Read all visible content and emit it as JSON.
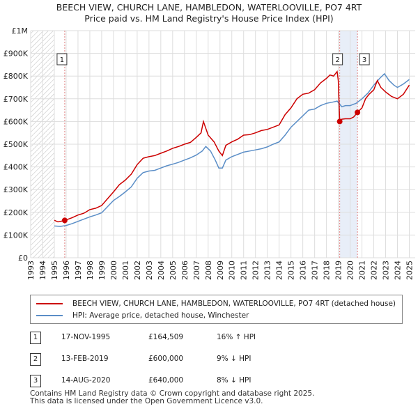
{
  "title_line1": "BEECH VIEW, CHURCH LANE, HAMBLEDON, WATERLOOVILLE, PO7 4RT",
  "title_line2": "Price paid vs. HM Land Registry's House Price Index (HPI)",
  "chart_data": {
    "type": "line",
    "title": "Price paid vs. HM Land Registry's House Price Index (HPI)",
    "xlabel": "",
    "ylabel": "",
    "xlim": [
      1993,
      2025.5
    ],
    "ylim": [
      0,
      1000000
    ],
    "y_ticks": [
      0,
      100000,
      200000,
      300000,
      400000,
      500000,
      600000,
      700000,
      800000,
      900000,
      1000000
    ],
    "y_tick_labels": [
      "£0",
      "£100K",
      "£200K",
      "£300K",
      "£400K",
      "£500K",
      "£600K",
      "£700K",
      "£800K",
      "£900K",
      "£1M"
    ],
    "x_tick_labels": [
      "1993",
      "1994",
      "1995",
      "1996",
      "1997",
      "1998",
      "1999",
      "2000",
      "2001",
      "2002",
      "2003",
      "2004",
      "2005",
      "2006",
      "2007",
      "2008",
      "2009",
      "2010",
      "2011",
      "2012",
      "2013",
      "2014",
      "2015",
      "2016",
      "2017",
      "2018",
      "2019",
      "2020",
      "2021",
      "2022",
      "2023",
      "2024",
      "2025"
    ],
    "grid": true,
    "hatched_region": [
      1993,
      1995.0
    ],
    "shaded_band": [
      2019.12,
      2020.62
    ],
    "series": [
      {
        "name": "BEECH VIEW, CHURCH LANE, HAMBLEDON, WATERLOOVILLE, PO7 4RT (detached house)",
        "color": "#cc0000",
        "x": [
          1995.0,
          1995.3,
          1995.6,
          1995.88,
          1996.5,
          1997.0,
          1997.5,
          1998.0,
          1998.5,
          1999.0,
          1999.5,
          2000.0,
          2000.5,
          2001.0,
          2001.5,
          2002.0,
          2002.5,
          2003.0,
          2003.5,
          2004.0,
          2004.5,
          2005.0,
          2005.5,
          2006.0,
          2006.5,
          2007.0,
          2007.4,
          2007.6,
          2008.0,
          2008.5,
          2008.9,
          2009.2,
          2009.5,
          2010.0,
          2010.5,
          2011.0,
          2011.5,
          2012.0,
          2012.5,
          2013.0,
          2013.5,
          2014.0,
          2014.5,
          2015.0,
          2015.5,
          2016.0,
          2016.5,
          2017.0,
          2017.5,
          2018.0,
          2018.3,
          2018.6,
          2018.9,
          2019.0,
          2019.12,
          2019.3,
          2019.6,
          2020.0,
          2020.3,
          2020.62,
          2020.8,
          2021.0,
          2021.3,
          2021.6,
          2022.0,
          2022.3,
          2022.6,
          2023.0,
          2023.5,
          2024.0,
          2024.5,
          2025.0
        ],
        "y": [
          165000,
          158000,
          161000,
          164509,
          176000,
          188000,
          196000,
          212000,
          218000,
          230000,
          260000,
          290000,
          322000,
          342000,
          368000,
          410000,
          438000,
          445000,
          450000,
          460000,
          470000,
          482000,
          490000,
          500000,
          508000,
          530000,
          550000,
          600000,
          540000,
          510000,
          470000,
          450000,
          495000,
          510000,
          522000,
          540000,
          542000,
          550000,
          560000,
          565000,
          575000,
          585000,
          630000,
          660000,
          700000,
          720000,
          725000,
          740000,
          770000,
          790000,
          805000,
          800000,
          820000,
          780000,
          600000,
          610000,
          612000,
          612000,
          620000,
          640000,
          650000,
          660000,
          700000,
          720000,
          740000,
          780000,
          750000,
          730000,
          710000,
          700000,
          720000,
          760000
        ]
      },
      {
        "name": "HPI: Average price, detached house, Winchester",
        "color": "#5b8ec7",
        "x": [
          1995.0,
          1995.5,
          1996.0,
          1996.5,
          1997.0,
          1997.5,
          1998.0,
          1998.5,
          1999.0,
          1999.5,
          2000.0,
          2000.5,
          2001.0,
          2001.5,
          2002.0,
          2002.5,
          2003.0,
          2003.5,
          2004.0,
          2004.5,
          2005.0,
          2005.5,
          2006.0,
          2006.5,
          2007.0,
          2007.5,
          2007.8,
          2008.2,
          2008.6,
          2008.9,
          2009.2,
          2009.5,
          2010.0,
          2010.5,
          2011.0,
          2011.5,
          2012.0,
          2012.5,
          2013.0,
          2013.5,
          2014.0,
          2014.5,
          2015.0,
          2015.5,
          2016.0,
          2016.5,
          2017.0,
          2017.5,
          2018.0,
          2018.5,
          2018.9,
          2019.3,
          2019.6,
          2020.0,
          2020.5,
          2021.0,
          2021.5,
          2022.0,
          2022.5,
          2022.9,
          2023.3,
          2023.7,
          2024.0,
          2024.5,
          2025.0
        ],
        "y": [
          140000,
          138000,
          142000,
          150000,
          160000,
          170000,
          180000,
          188000,
          198000,
          225000,
          252000,
          270000,
          290000,
          312000,
          350000,
          375000,
          382000,
          385000,
          395000,
          405000,
          412000,
          420000,
          430000,
          440000,
          452000,
          470000,
          490000,
          470000,
          430000,
          395000,
          395000,
          430000,
          445000,
          455000,
          465000,
          470000,
          475000,
          480000,
          488000,
          500000,
          510000,
          540000,
          575000,
          600000,
          625000,
          650000,
          655000,
          670000,
          680000,
          685000,
          690000,
          665000,
          670000,
          670000,
          680000,
          700000,
          725000,
          760000,
          790000,
          810000,
          780000,
          760000,
          750000,
          765000,
          785000
        ]
      }
    ],
    "sales": [
      {
        "label": "1",
        "x": 1995.88,
        "price": 164509
      },
      {
        "label": "2",
        "x": 2019.12,
        "price": 600000
      },
      {
        "label": "3",
        "x": 2020.62,
        "price": 640000
      }
    ]
  },
  "legend": {
    "property_label": "BEECH VIEW, CHURCH LANE, HAMBLEDON, WATERLOOVILLE, PO7 4RT (detached house)",
    "hpi_label": "HPI: Average price, detached house, Winchester",
    "property_color": "#cc0000",
    "hpi_color": "#5b8ec7"
  },
  "transactions": [
    {
      "num": "1",
      "date": "17-NOV-1995",
      "price": "£164,509",
      "hpi": "16% ↑ HPI"
    },
    {
      "num": "2",
      "date": "13-FEB-2019",
      "price": "£600,000",
      "hpi": "9% ↓ HPI"
    },
    {
      "num": "3",
      "date": "14-AUG-2020",
      "price": "£640,000",
      "hpi": "8% ↓ HPI"
    }
  ],
  "footer_line1": "Contains HM Land Registry data © Crown copyright and database right 2025.",
  "footer_line2": "This data is licensed under the Open Government Licence v3.0."
}
